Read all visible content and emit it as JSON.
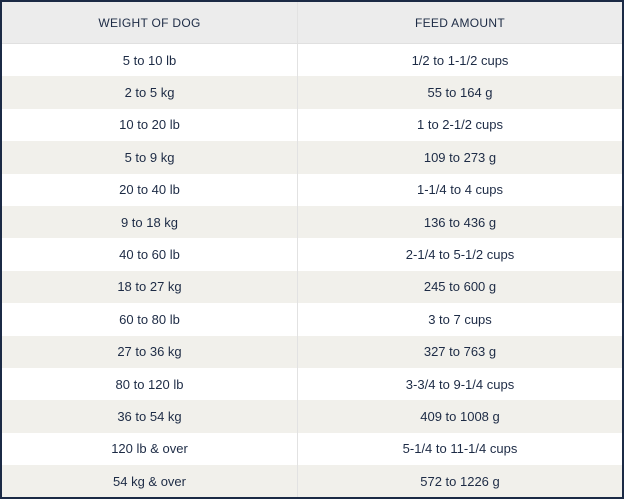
{
  "table": {
    "columns": [
      "WEIGHT OF DOG",
      "FEED AMOUNT"
    ],
    "rows": [
      [
        "5 to 10 lb",
        "1/2 to 1-1/2 cups"
      ],
      [
        "2 to 5 kg",
        "55 to 164 g"
      ],
      [
        "10 to 20 lb",
        "1 to 2-1/2 cups"
      ],
      [
        "5 to 9 kg",
        "109 to 273 g"
      ],
      [
        "20 to 40 lb",
        "1-1/4 to 4 cups"
      ],
      [
        "9 to 18 kg",
        "136 to 436 g"
      ],
      [
        "40 to 60 lb",
        "2-1/4 to 5-1/2 cups"
      ],
      [
        "18 to 27 kg",
        "245 to 600 g"
      ],
      [
        "60 to 80 lb",
        "3 to 7 cups"
      ],
      [
        "27 to 36 kg",
        "327 to 763 g"
      ],
      [
        "80 to 120 lb",
        "3-3/4 to 9-1/4 cups"
      ],
      [
        "36 to 54 kg",
        "409 to 1008 g"
      ],
      [
        "120 lb & over",
        "5-1/4 to 11-1/4 cups"
      ],
      [
        "54 kg & over",
        "572 to 1226 g"
      ]
    ]
  }
}
